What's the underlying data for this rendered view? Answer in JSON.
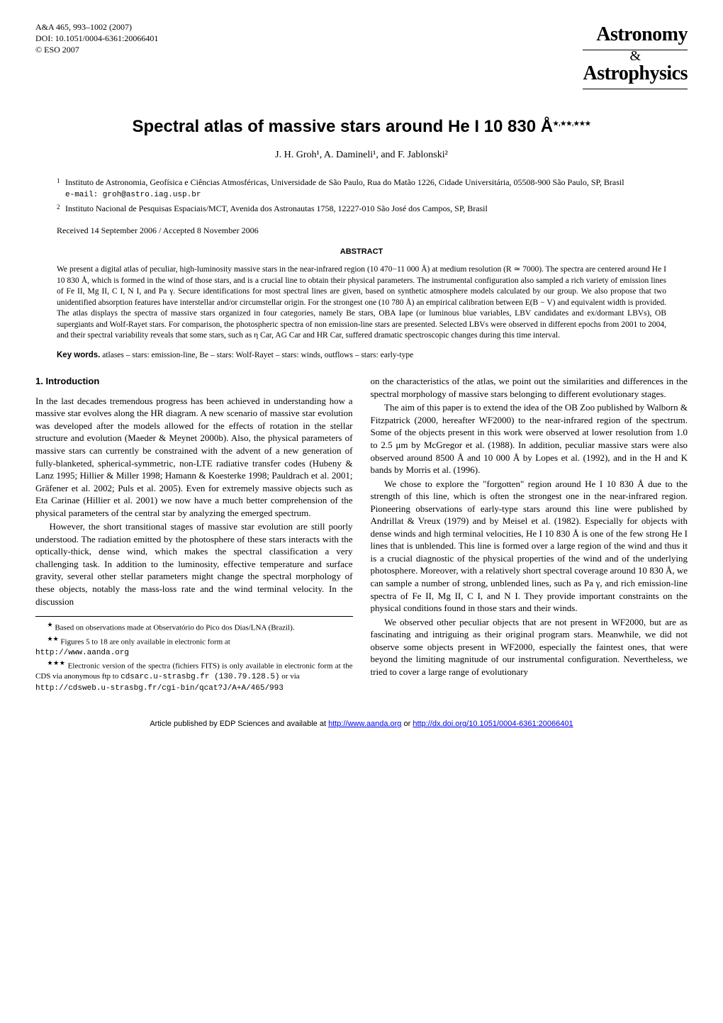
{
  "header": {
    "citation": "A&A 465, 993–1002 (2007)",
    "doi": "DOI: 10.1051/0004-6361:20066401",
    "copyright": "© ESO 2007",
    "journal_top": "Astronomy",
    "journal_amp": "&",
    "journal_bottom": "Astrophysics"
  },
  "title": "Spectral atlas of massive stars around He I 10 830 Å",
  "title_marks": "★,★★,★★★",
  "authors": "J. H. Groh¹, A. Damineli¹, and F. Jablonski²",
  "affiliations": [
    {
      "num": "1",
      "text": "Instituto de Astronomia, Geofísica e Ciências Atmosféricas, Universidade de São Paulo, Rua do Matão 1226, Cidade Universitária, 05508-900 São Paulo, SP, Brasil",
      "email": "e-mail: groh@astro.iag.usp.br"
    },
    {
      "num": "2",
      "text": "Instituto Nacional de Pesquisas Espaciais/MCT, Avenida dos Astronautas 1758, 12227-010 São José dos Campos, SP, Brasil",
      "email": ""
    }
  ],
  "dates": "Received 14 September 2006 / Accepted 8 November 2006",
  "abstract": {
    "heading": "ABSTRACT",
    "text": "We present a digital atlas of peculiar, high-luminosity massive stars in the near-infrared region (10 470−11 000 Å) at medium resolution (R ≃ 7000). The spectra are centered around He I 10 830 Å, which is formed in the wind of those stars, and is a crucial line to obtain their physical parameters. The instrumental configuration also sampled a rich variety of emission lines of Fe II, Mg II, C I, N I, and Pa γ. Secure identifications for most spectral lines are given, based on synthetic atmosphere models calculated by our group. We also propose that two unidentified absorption features have interstellar and/or circumstellar origin. For the strongest one (10 780 Å) an empirical calibration between E(B − V) and equivalent width is provided. The atlas displays the spectra of massive stars organized in four categories, namely Be stars, OBA Iape (or luminous blue variables, LBV candidates and ex/dormant LBVs), OB supergiants and Wolf-Rayet stars. For comparison, the photospheric spectra of non emission-line stars are presented. Selected LBVs were observed in different epochs from 2001 to 2004, and their spectral variability reveals that some stars, such as η Car, AG Car and HR Car, suffered dramatic spectroscopic changes during this time interval."
  },
  "keywords": {
    "label": "Key words.",
    "text": " atlases – stars: emission-line, Be – stars: Wolf-Rayet – stars: winds, outflows – stars: early-type"
  },
  "section1": {
    "heading": "1. Introduction",
    "p1": "In the last decades tremendous progress has been achieved in understanding how a massive star evolves along the HR diagram. A new scenario of massive star evolution was developed after the models allowed for the effects of rotation in the stellar structure and evolution (Maeder & Meynet 2000b). Also, the physical parameters of massive stars can currently be constrained with the advent of a new generation of fully-blanketed, spherical-symmetric, non-LTE radiative transfer codes (Hubeny & Lanz 1995; Hillier & Miller 1998; Hamann & Koesterke 1998; Pauldrach et al. 2001; Gräfener et al. 2002; Puls et al. 2005). Even for extremely massive objects such as Eta Carinae (Hillier et al. 2001) we now have a much better comprehension of the physical parameters of the central star by analyzing the emerged spectrum.",
    "p2": "However, the short transitional stages of massive star evolution are still poorly understood. The radiation emitted by the photosphere of these stars interacts with the optically-thick, dense wind, which makes the spectral classification a very challenging task. In addition to the luminosity, effective temperature and surface gravity, several other stellar parameters might change the spectral morphology of these objects, notably the mass-loss rate and the wind terminal velocity. In the discussion",
    "p3": "on the characteristics of the atlas, we point out the similarities and differences in the spectral morphology of massive stars belonging to different evolutionary stages.",
    "p4": "The aim of this paper is to extend the idea of the OB Zoo published by Walborn & Fitzpatrick (2000, hereafter WF2000) to the near-infrared region of the spectrum. Some of the objects present in this work were observed at lower resolution from 1.0 to 2.5 μm by McGregor et al. (1988). In addition, peculiar massive stars were also observed around 8500 Å and 10 000 Å by Lopes et al. (1992), and in the H and K bands by Morris et al. (1996).",
    "p5": "We chose to explore the \"forgotten\" region around He I 10 830 Å due to the strength of this line, which is often the strongest one in the near-infrared region. Pioneering observations of early-type stars around this line were published by Andrillat & Vreux (1979) and by Meisel et al. (1982). Especially for objects with dense winds and high terminal velocities, He I 10 830 Å is one of the few strong He I lines that is unblended. This line is formed over a large region of the wind and thus it is a crucial diagnostic of the physical properties of the wind and of the underlying photosphere. Moreover, with a relatively short spectral coverage around 10 830 Å, we can sample a number of strong, unblended lines, such as Pa γ, and rich emission-line spectra of Fe II, Mg II, C I, and N I. They provide important constraints on the physical conditions found in those stars and their winds.",
    "p6": "We observed other peculiar objects that are not present in WF2000, but are as fascinating and intriguing as their original program stars. Meanwhile, we did not observe some objects present in WF2000, especially the faintest ones, that were beyond the limiting magnitude of our instrumental configuration. Nevertheless, we tried to cover a large range of evolutionary"
  },
  "footnotes": {
    "f1_mark": "★",
    "f1_text": " Based on observations made at Observatório do Pico dos Dias/LNA (Brazil).",
    "f2_mark": "★★",
    "f2_text": " Figures 5 to 18 are only available in electronic form at",
    "f2_url": "http://www.aanda.org",
    "f3_mark": "★★★",
    "f3_text": " Electronic version of the spectra (fichiers FITS) is only available in electronic form at the CDS via anonymous ftp to ",
    "f3_code": "cdsarc.u-strasbg.fr (130.79.128.5)",
    "f3_text2": " or via",
    "f3_url": "http://cdsweb.u-strasbg.fr/cgi-bin/qcat?J/A+A/465/993"
  },
  "footer": {
    "text1": "Article published by EDP Sciences and available at ",
    "link1": "http://www.aanda.org",
    "text2": " or ",
    "link2": "http://dx.doi.org/10.1051/0004-6361:20066401"
  }
}
